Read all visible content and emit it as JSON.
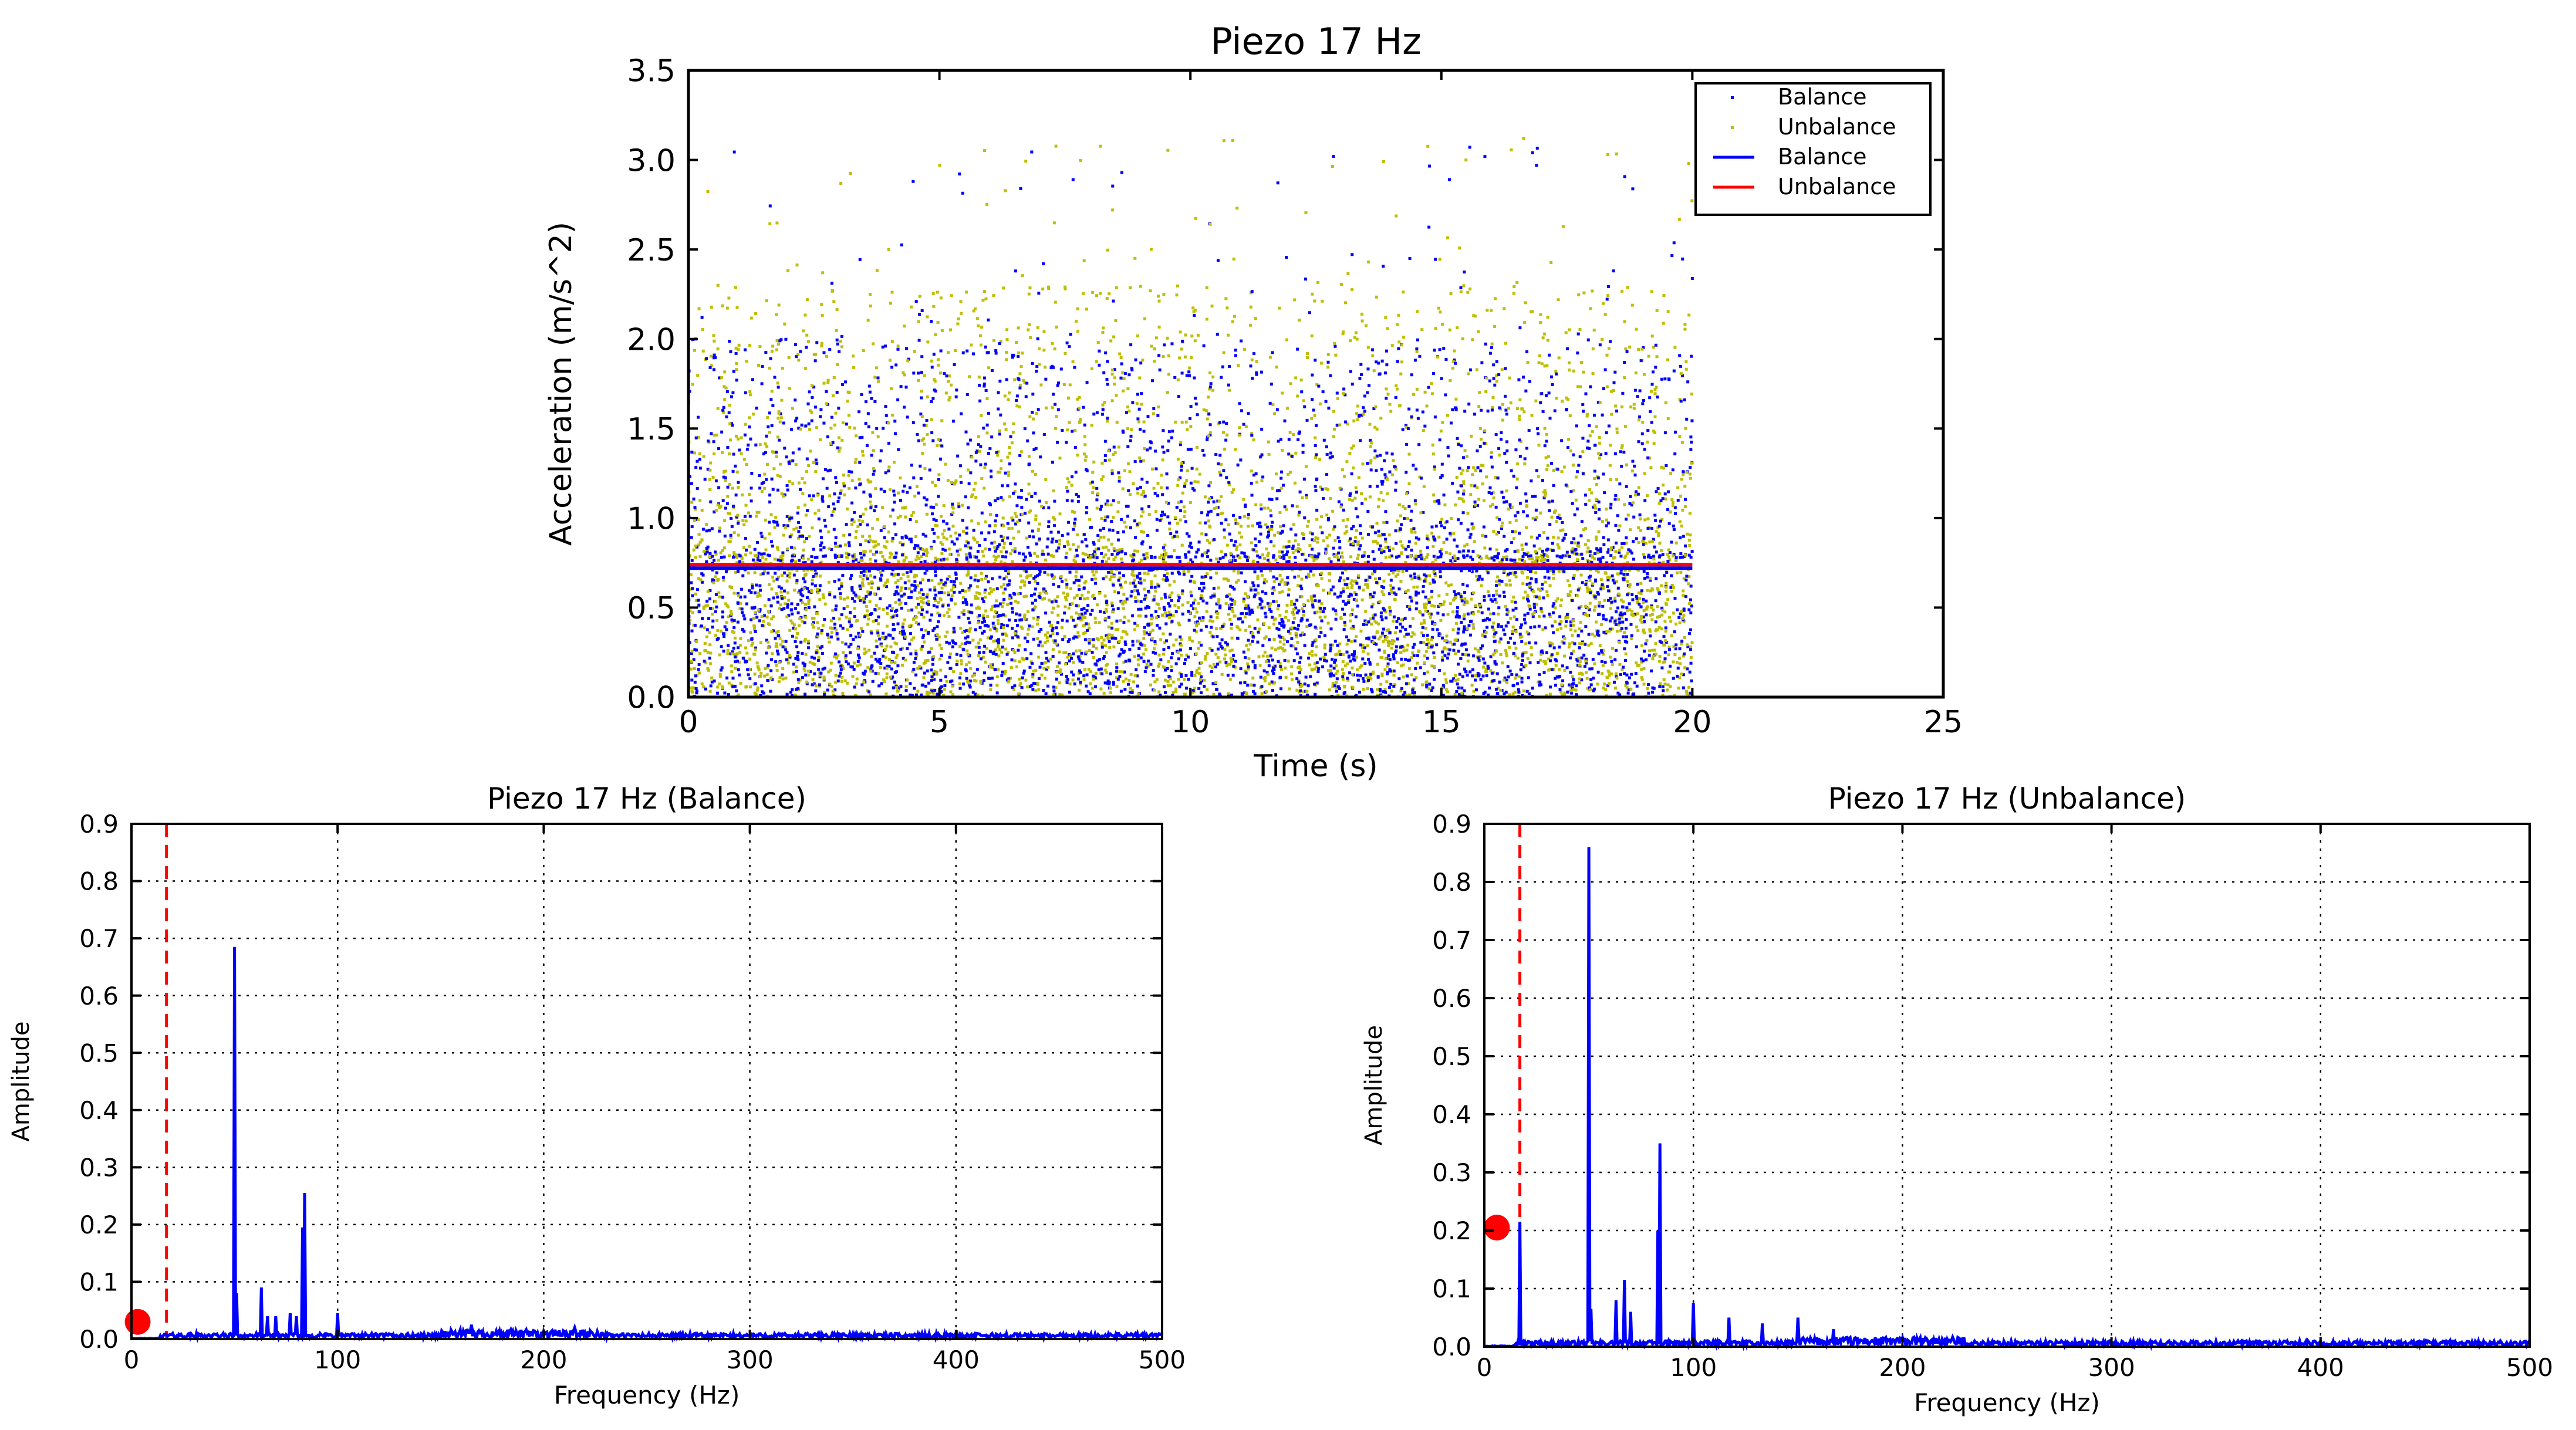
{
  "chart_data": [
    {
      "type": "scatter",
      "title": "Piezo 17 Hz",
      "xlabel": "Time (s)",
      "ylabel": "Acceleration (m/s^2)",
      "xlim": [
        0,
        25
      ],
      "ylim": [
        0,
        3.5
      ],
      "xticks": [
        "0",
        "5",
        "10",
        "15",
        "20",
        "25"
      ],
      "yticks": [
        "0.0",
        "0.5",
        "1.0",
        "1.5",
        "2.0",
        "2.5",
        "3.0",
        "3.5"
      ],
      "grid": false,
      "legend_position": "top-right",
      "sample_range": [
        0,
        20
      ],
      "series": [
        {
          "name": "Balance",
          "kind": "points",
          "color": "#0000ff",
          "typical_max": 2.0,
          "peak_max": 3.1
        },
        {
          "name": "Unbalance",
          "kind": "points",
          "color": "#bfbf00",
          "typical_max": 2.3,
          "peak_max": 3.15
        },
        {
          "name": "Balance",
          "kind": "mean-line",
          "color": "#0000ff",
          "value": 0.72
        },
        {
          "name": "Unbalance",
          "kind": "mean-line",
          "color": "#ff0000",
          "value": 0.74
        }
      ]
    },
    {
      "type": "line",
      "title": "Piezo 17 Hz (Balance)",
      "xlabel": "Frequency (Hz)",
      "ylabel": "Amplitude",
      "xlim": [
        0,
        500
      ],
      "ylim": [
        0,
        0.9
      ],
      "xticks": [
        "0",
        "100",
        "200",
        "300",
        "400",
        "500"
      ],
      "yticks": [
        "0.0",
        "0.1",
        "0.2",
        "0.3",
        "0.4",
        "0.5",
        "0.6",
        "0.7",
        "0.8",
        "0.9"
      ],
      "grid": true,
      "line_color": "#0000ff",
      "reference_line": {
        "x": 17,
        "color": "#ff0000",
        "style": "dashed"
      },
      "marker": {
        "x": 3,
        "y": 0.03,
        "color": "#ff0000"
      },
      "peaks": [
        {
          "x": 50,
          "y": 0.685
        },
        {
          "x": 51,
          "y": 0.08
        },
        {
          "x": 63,
          "y": 0.09
        },
        {
          "x": 66,
          "y": 0.04
        },
        {
          "x": 70,
          "y": 0.04
        },
        {
          "x": 77,
          "y": 0.045
        },
        {
          "x": 80,
          "y": 0.04
        },
        {
          "x": 83,
          "y": 0.195
        },
        {
          "x": 84,
          "y": 0.255
        },
        {
          "x": 100,
          "y": 0.045
        },
        {
          "x": 165,
          "y": 0.025
        },
        {
          "x": 215,
          "y": 0.02
        }
      ]
    },
    {
      "type": "line",
      "title": "Piezo 17 Hz (Unbalance)",
      "xlabel": "Frequency (Hz)",
      "ylabel": "Amplitude",
      "xlim": [
        0,
        500
      ],
      "ylim": [
        0,
        0.9
      ],
      "xticks": [
        "0",
        "100",
        "200",
        "300",
        "400",
        "500"
      ],
      "yticks": [
        "0.0",
        "0.1",
        "0.2",
        "0.3",
        "0.4",
        "0.5",
        "0.6",
        "0.7",
        "0.8",
        "0.9"
      ],
      "grid": true,
      "line_color": "#0000ff",
      "reference_line": {
        "x": 17,
        "color": "#ff0000",
        "style": "dashed"
      },
      "marker": {
        "x": 6,
        "y": 0.205,
        "color": "#ff0000"
      },
      "peaks": [
        {
          "x": 17,
          "y": 0.215
        },
        {
          "x": 50,
          "y": 0.86
        },
        {
          "x": 51,
          "y": 0.065
        },
        {
          "x": 63,
          "y": 0.08
        },
        {
          "x": 67,
          "y": 0.115
        },
        {
          "x": 70,
          "y": 0.06
        },
        {
          "x": 83,
          "y": 0.2
        },
        {
          "x": 84,
          "y": 0.35
        },
        {
          "x": 100,
          "y": 0.075
        },
        {
          "x": 117,
          "y": 0.05
        },
        {
          "x": 133,
          "y": 0.04
        },
        {
          "x": 150,
          "y": 0.05
        },
        {
          "x": 167,
          "y": 0.03
        }
      ]
    }
  ]
}
